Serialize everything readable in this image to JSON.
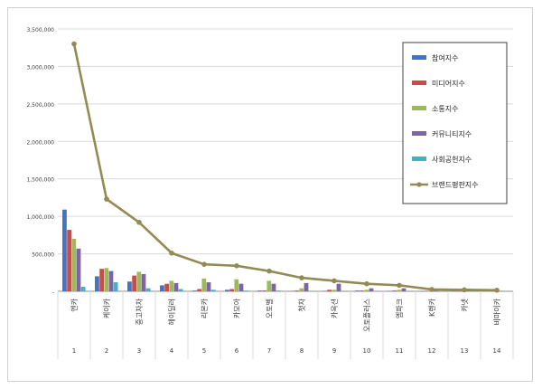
{
  "chart_data": {
    "type": "bar",
    "categories": [
      "엔카",
      "케이카",
      "중고차차",
      "헤이딜러",
      "리본카",
      "카모아",
      "오토벨",
      "첫차",
      "카옥션",
      "오토플러스",
      "엠파크",
      "K렌카",
      "카넷",
      "비마이카"
    ],
    "index_labels": [
      "1",
      "2",
      "3",
      "4",
      "5",
      "6",
      "7",
      "8",
      "9",
      "10",
      "11",
      "12",
      "13",
      "14"
    ],
    "ylim": [
      0,
      3500000
    ],
    "yticks": [
      0,
      500000,
      1000000,
      1500000,
      2000000,
      2500000,
      3000000,
      3500000
    ],
    "ytick_labels": [
      "-",
      "500,000",
      "1,000,000",
      "1,500,000",
      "2,000,000",
      "2,500,000",
      "3,000,000",
      "3,500,000"
    ],
    "grid": true,
    "legend_position": "right",
    "series": [
      {
        "name": "참여지수",
        "kind": "bar",
        "color": "#4472c4",
        "values": [
          1090000,
          200000,
          130000,
          80000,
          10000,
          20000,
          10000,
          5000,
          5000,
          10000,
          5000,
          5000,
          3000,
          2000
        ]
      },
      {
        "name": "미디어지수",
        "kind": "bar",
        "color": "#c0504d",
        "values": [
          820000,
          300000,
          210000,
          100000,
          30000,
          30000,
          10000,
          10000,
          20000,
          10000,
          10000,
          5000,
          3000,
          3000
        ]
      },
      {
        "name": "소통지수",
        "kind": "bar",
        "color": "#9bbb59",
        "values": [
          700000,
          310000,
          260000,
          140000,
          170000,
          160000,
          140000,
          40000,
          20000,
          20000,
          20000,
          5000,
          5000,
          3000
        ]
      },
      {
        "name": "커뮤니티지수",
        "kind": "bar",
        "color": "#8064a2",
        "values": [
          570000,
          270000,
          230000,
          110000,
          120000,
          100000,
          100000,
          110000,
          100000,
          40000,
          40000,
          10000,
          5000,
          5000
        ]
      },
      {
        "name": "사회공헌지수",
        "kind": "bar",
        "color": "#4bacc6",
        "values": [
          60000,
          120000,
          40000,
          30000,
          20000,
          10000,
          10000,
          5000,
          5000,
          5000,
          5000,
          3000,
          2000,
          2000
        ]
      },
      {
        "name": "브랜드평판지수",
        "kind": "line",
        "color": "#948a54",
        "values": [
          3300000,
          1230000,
          920000,
          510000,
          360000,
          340000,
          270000,
          180000,
          140000,
          100000,
          80000,
          25000,
          20000,
          15000
        ]
      }
    ]
  }
}
